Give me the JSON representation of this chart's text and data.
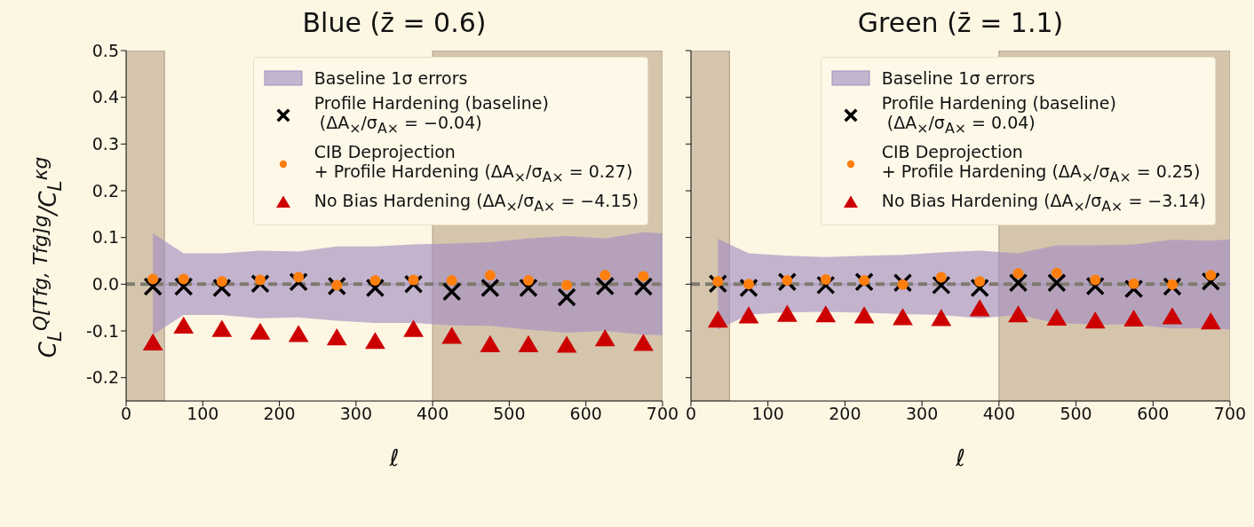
{
  "chart_data": [
    {
      "type": "scatter",
      "title": "Blue (z̄ = 0.6)",
      "xlabel": "ℓ",
      "ylabel": "C$_{L}$$^{Q[Tfg, Tfg]g}$/C$_{L}$$^{κg}$",
      "x": [
        35,
        75,
        125,
        175,
        225,
        275,
        325,
        375,
        425,
        475,
        525,
        575,
        625,
        675
      ],
      "xlim": [
        0,
        700
      ],
      "xticks": [
        0,
        100,
        200,
        300,
        400,
        500,
        600,
        700
      ],
      "ylim": [
        -0.25,
        0.5
      ],
      "yticks": [
        -0.2,
        -0.1,
        {
          "value": 0,
          "label": "0.0"
        },
        0.1,
        0.2,
        0.3,
        0.4,
        0.5
      ],
      "legend": "top right",
      "series": [
        {
          "name": "Baseline 1σ errors",
          "type": "line",
          "color": "#a58fc2",
          "x": [
            35,
            75,
            125,
            175,
            225,
            275,
            325,
            375,
            425,
            475,
            525,
            575,
            625,
            675,
            700
          ],
          "values": [
            0,
            0,
            0,
            0,
            0,
            0,
            0,
            0,
            0,
            0,
            0,
            0,
            0,
            0,
            0
          ],
          "lower": [
            -0.108,
            -0.066,
            -0.066,
            -0.073,
            -0.071,
            -0.078,
            -0.083,
            -0.083,
            -0.088,
            -0.089,
            -0.097,
            -0.104,
            -0.1,
            -0.108,
            -0.109
          ],
          "upper": [
            0.109,
            0.066,
            0.066,
            0.072,
            0.07,
            0.081,
            0.081,
            0.085,
            0.087,
            0.09,
            0.098,
            0.103,
            0.098,
            0.111,
            0.109
          ]
        },
        {
          "name": "Profile Hardening (baseline)\n (ΔA$_{×}$/σ$_{A×}$ = −0.04)",
          "type": "scatter",
          "marker": "cross",
          "color": "#000000",
          "values": [
            -0.005,
            -0.005,
            -0.008,
            0.001,
            0.005,
            -0.004,
            -0.008,
            0.0,
            -0.016,
            -0.008,
            -0.008,
            -0.028,
            -0.004,
            -0.005
          ]
        },
        {
          "name": "CIB Deprojection\n+ Profile Hardening (ΔA$_{×}$/σ$_{A×}$ = 0.27)",
          "type": "scatter",
          "marker": "circle",
          "color": "#ff7f0e",
          "values": [
            0.011,
            0.011,
            0.006,
            0.009,
            0.015,
            -0.002,
            0.008,
            0.009,
            0.008,
            0.019,
            0.008,
            -0.002,
            0.019,
            0.017
          ]
        },
        {
          "name": "No Bias Hardening (ΔA$_{×}$/σ$_{A×}$ = −4.15)",
          "type": "scatter",
          "marker": "triangle",
          "color": "#cc0000",
          "values": [
            -0.128,
            -0.092,
            -0.099,
            -0.105,
            -0.11,
            -0.117,
            -0.125,
            -0.099,
            -0.114,
            -0.132,
            -0.132,
            -0.133,
            -0.119,
            -0.129
          ]
        }
      ],
      "ref_lines": [
        {
          "axis": "y",
          "value": 0,
          "color": "#7f7a6e",
          "line_style": "dashed"
        }
      ],
      "bands": [
        {
          "axis": "x",
          "from": 0,
          "to": 50,
          "color": "#d5c5ad"
        },
        {
          "axis": "x",
          "from": 400,
          "to": 700,
          "color": "#d5c5ad"
        }
      ]
    },
    {
      "type": "scatter",
      "title": "Green (z̄ = 1.1)",
      "xlabel": "ℓ",
      "tick_labels": "x",
      "x": [
        35,
        75,
        125,
        175,
        225,
        275,
        325,
        375,
        425,
        475,
        525,
        575,
        625,
        675
      ],
      "xlim": [
        0,
        700
      ],
      "xticks": [
        0,
        100,
        200,
        300,
        400,
        500,
        600,
        700
      ],
      "ylim": [
        -0.25,
        0.5
      ],
      "yticks": [
        -0.2,
        -0.1,
        0,
        0.1,
        0.2,
        0.3,
        0.4,
        0.5
      ],
      "legend": "top right",
      "series": [
        {
          "name": "Baseline 1σ errors",
          "type": "line",
          "color": "#a58fc2",
          "x": [
            35,
            75,
            125,
            175,
            225,
            275,
            325,
            375,
            425,
            475,
            525,
            575,
            625,
            675,
            700
          ],
          "values": [
            0,
            0,
            0,
            0,
            0,
            0,
            0,
            0,
            0,
            0,
            0,
            0,
            0,
            0,
            0
          ],
          "lower": [
            -0.097,
            -0.065,
            -0.06,
            -0.059,
            -0.061,
            -0.064,
            -0.066,
            -0.073,
            -0.066,
            -0.083,
            -0.086,
            -0.086,
            -0.095,
            -0.094,
            -0.097
          ],
          "upper": [
            0.097,
            0.066,
            0.061,
            0.058,
            0.061,
            0.063,
            0.068,
            0.072,
            0.066,
            0.083,
            0.083,
            0.085,
            0.095,
            0.093,
            0.096
          ]
        },
        {
          "name": "Profile Hardening (baseline)\n (ΔA$_{×}$/σ$_{A×}$ = 0.04)",
          "type": "scatter",
          "marker": "cross",
          "color": "#000000",
          "values": [
            0.001,
            -0.008,
            0.005,
            -0.002,
            0.005,
            0.003,
            -0.002,
            -0.008,
            0.003,
            0.003,
            -0.004,
            -0.01,
            -0.005,
            0.006
          ]
        },
        {
          "name": "CIB Deprojection\n+ Profile Hardening (ΔA$_{×}$/σ$_{A×}$ = 0.25)",
          "type": "scatter",
          "marker": "circle",
          "color": "#ff7f0e",
          "values": [
            0.006,
            0.0,
            0.008,
            0.01,
            0.008,
            -0.001,
            0.015,
            0.006,
            0.023,
            0.024,
            0.009,
            0.001,
            -0.001,
            0.019
          ]
        },
        {
          "name": "No Bias Hardening (ΔA$_{×}$/σ$_{A×}$ = −3.14)",
          "type": "scatter",
          "marker": "triangle",
          "color": "#cc0000",
          "values": [
            -0.079,
            -0.07,
            -0.067,
            -0.068,
            -0.07,
            -0.074,
            -0.076,
            -0.055,
            -0.068,
            -0.075,
            -0.081,
            -0.077,
            -0.072,
            -0.083
          ]
        }
      ],
      "ref_lines": [
        {
          "axis": "y",
          "value": 0,
          "color": "#7f7a6e",
          "line_style": "dashed"
        }
      ],
      "bands": [
        {
          "axis": "x",
          "from": 0,
          "to": 50,
          "color": "#d5c5ad"
        },
        {
          "axis": "x",
          "from": 400,
          "to": 700,
          "color": "#d5c5ad"
        }
      ]
    }
  ]
}
